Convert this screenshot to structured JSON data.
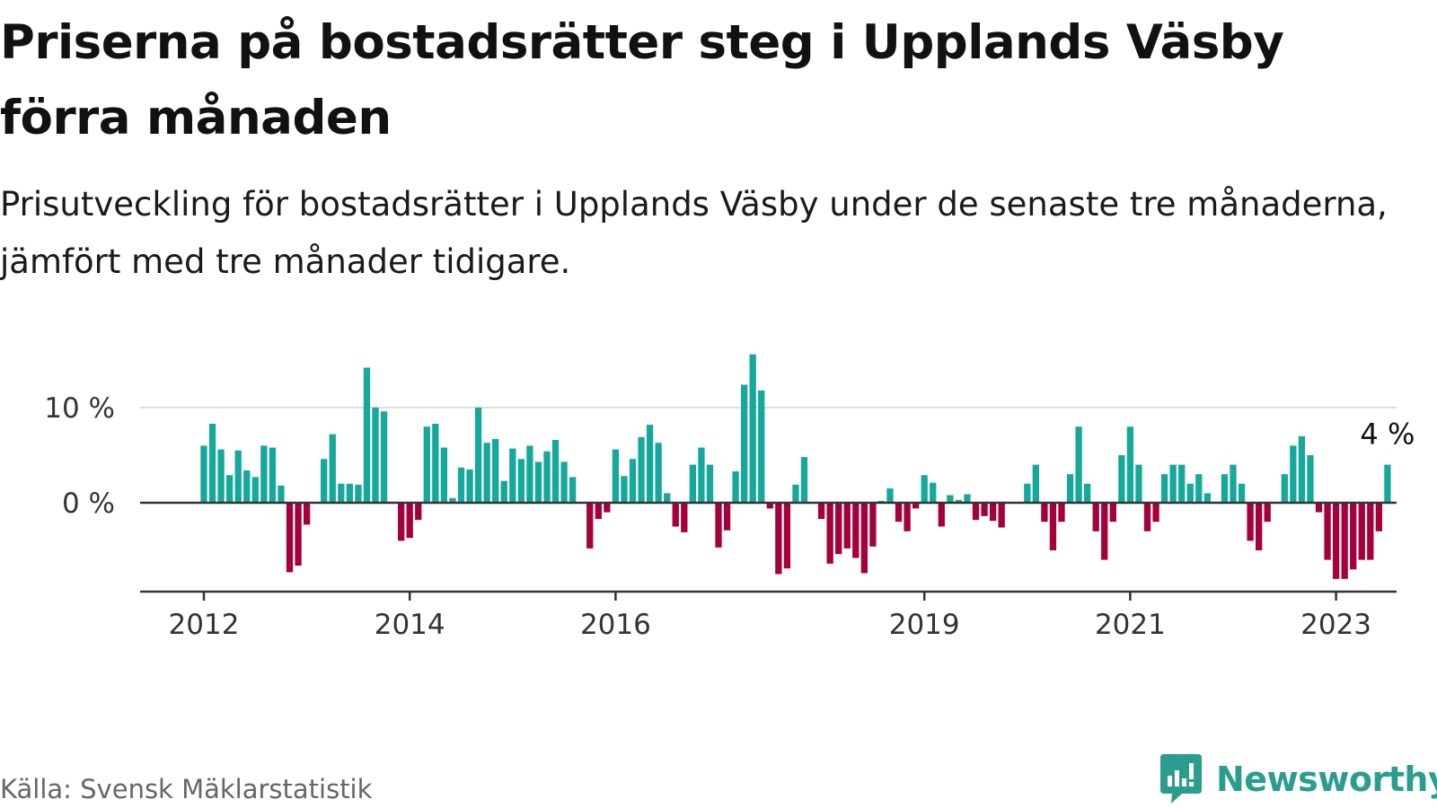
{
  "title": "Priserna på bostadsrätter steg i Upplands Väsby förra månaden",
  "subtitle": "Prisutveckling för bostadsrätter i Upplands Väsby under de senaste tre månaderna, jämfört med tre månader tidigare.",
  "source": "Källa: Svensk Mäklarstatistik",
  "brand": "Newsworthy",
  "colors": {
    "positive": "#16a89b",
    "negative": "#a3003c",
    "gridline": "#dddddd",
    "axis": "#333333",
    "brand": "#2a9d8f"
  },
  "chart_data": {
    "type": "bar",
    "ylabel": "",
    "xlabel": "",
    "ylim": [
      -9,
      15.5
    ],
    "y_ticks": [
      {
        "value": 0,
        "label": "0 %"
      },
      {
        "value": 10,
        "label": "10 %"
      }
    ],
    "x_ticks": [
      {
        "index": 0,
        "label": "2012"
      },
      {
        "index": 24,
        "label": "2014"
      },
      {
        "index": 48,
        "label": "2016"
      },
      {
        "index": 84,
        "label": "2019"
      },
      {
        "index": 108,
        "label": "2021"
      },
      {
        "index": 132,
        "label": "2023"
      }
    ],
    "last_value_label": "4 %",
    "series": [
      {
        "values": [
          6.0,
          8.3,
          5.6,
          2.9,
          5.5,
          3.4,
          2.7,
          6.0,
          5.8,
          1.8,
          -7.3,
          -6.6,
          -2.3,
          0.0,
          4.6,
          7.2,
          2.0,
          2.0,
          1.9,
          14.2,
          10.0,
          9.6,
          0.0,
          -4.0,
          -3.7,
          -1.8,
          8.0,
          8.3,
          5.8,
          0.5,
          3.7,
          3.5,
          10.0,
          6.3,
          6.7,
          2.3,
          5.7,
          4.6,
          6.0,
          4.3,
          5.4,
          6.6,
          4.3,
          2.7,
          0.0,
          -4.8,
          -1.7,
          -1.0,
          5.6,
          2.8,
          4.6,
          6.9,
          8.2,
          6.3,
          1.0,
          -2.5,
          -3.1,
          4.0,
          5.8,
          4.0,
          -4.7,
          -2.9,
          3.3,
          12.4,
          15.6,
          11.8,
          -0.6,
          -7.5,
          -6.9,
          1.9,
          4.8,
          0.0,
          -1.7,
          -6.4,
          -5.4,
          -4.8,
          -5.8,
          -7.4,
          -4.6,
          0.2,
          1.5,
          -2.0,
          -3.0,
          -0.6,
          2.9,
          2.1,
          -2.5,
          0.8,
          0.3,
          0.9,
          -1.8,
          -1.4,
          -1.9,
          -2.6,
          0.0,
          0.0,
          2.0,
          4.0,
          -2.0,
          -5.0,
          -2.0,
          3.0,
          8.0,
          2.0,
          -3.0,
          -6.0,
          -2.0,
          5.0,
          8.0,
          4.0,
          -3.0,
          -2.0,
          3.0,
          4.0,
          4.0,
          2.0,
          3.0,
          1.0,
          0.0,
          3.0,
          4.0,
          2.0,
          -4.0,
          -5.0,
          -2.0,
          0.0,
          3.0,
          6.0,
          7.0,
          5.0,
          -1.0,
          -6.0,
          -8.0,
          -8.0,
          -7.0,
          -6.0,
          -6.0,
          -3.0,
          4.0
        ]
      }
    ]
  }
}
